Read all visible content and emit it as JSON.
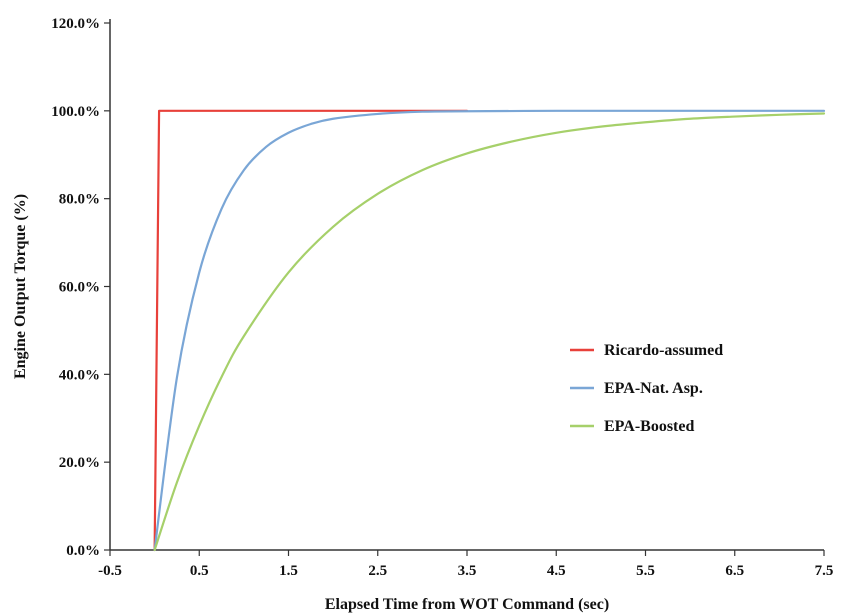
{
  "chart_data": {
    "type": "line",
    "xlabel": "Elapsed Time from WOT Command (sec)",
    "ylabel": "Engine Output Torque (%)",
    "xlim": [
      -0.5,
      7.5
    ],
    "ylim": [
      0,
      120
    ],
    "x_ticks": [
      -0.5,
      0.5,
      1.5,
      2.5,
      3.5,
      4.5,
      5.5,
      6.5,
      7.5
    ],
    "x_tick_labels": [
      "-0.5",
      "0.5",
      "1.5",
      "2.5",
      "3.5",
      "4.5",
      "5.5",
      "6.5",
      "7.5"
    ],
    "y_ticks": [
      0,
      20,
      40,
      60,
      80,
      100,
      120
    ],
    "y_tick_labels": [
      "0.0%",
      "20.0%",
      "40.0%",
      "60.0%",
      "80.0%",
      "100.0%",
      "120.0%"
    ],
    "grid": false,
    "legend_position": "center-right",
    "series": [
      {
        "name": "Ricardo-assumed",
        "color": "#e8403a",
        "x": [
          0,
          0.05,
          3.5
        ],
        "y": [
          0,
          100,
          100
        ]
      },
      {
        "name": "EPA-Nat. Asp.",
        "color": "#7aa6d6",
        "x": [
          0,
          0.25,
          0.5,
          0.75,
          1.0,
          1.25,
          1.5,
          1.75,
          2.0,
          2.5,
          3.0,
          3.5,
          4.5,
          5.5,
          6.5,
          7.5
        ],
        "y": [
          0,
          39.3,
          63.2,
          77.7,
          86.5,
          91.8,
          95.0,
          97.0,
          98.2,
          99.3,
          99.8,
          99.9,
          100,
          100,
          100,
          100
        ]
      },
      {
        "name": "EPA-Boosted",
        "color": "#a6d06a",
        "x": [
          0,
          0.25,
          0.5,
          0.75,
          1.0,
          1.5,
          2.0,
          2.5,
          3.0,
          3.5,
          4.0,
          4.5,
          5.0,
          5.5,
          6.0,
          6.5,
          7.0,
          7.5
        ],
        "y": [
          0,
          15.4,
          28.3,
          39.4,
          48.7,
          63.2,
          73.6,
          81.1,
          86.5,
          90.3,
          93.0,
          95.0,
          96.4,
          97.4,
          98.2,
          98.7,
          99.1,
          99.4
        ]
      }
    ]
  }
}
